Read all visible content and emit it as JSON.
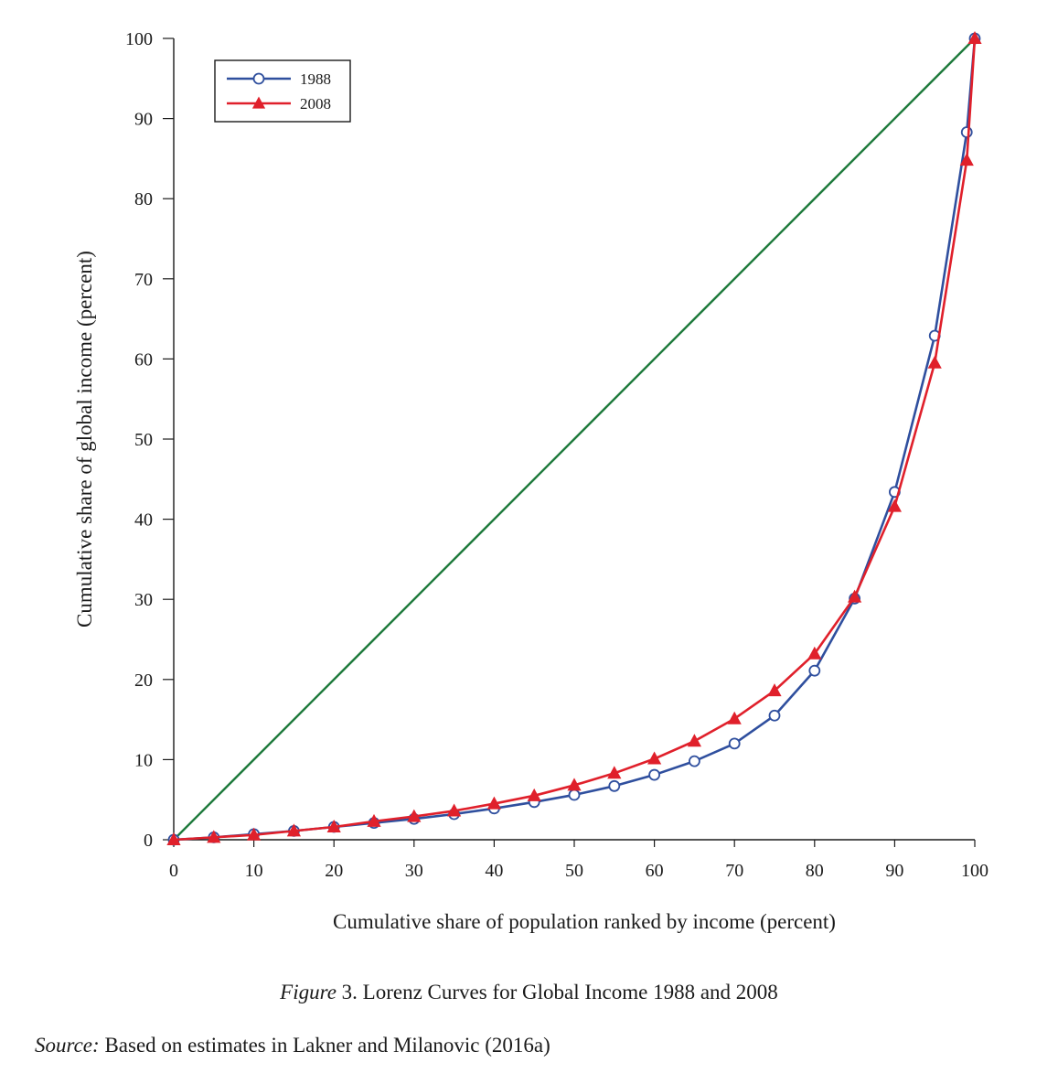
{
  "chart_data": {
    "type": "line",
    "title": "",
    "xlabel": "Cumulative share of population ranked by income (percent)",
    "ylabel": "Cumulative share of global income (percent)",
    "xlim": [
      0,
      100
    ],
    "ylim": [
      0,
      100
    ],
    "x_ticks": [
      0,
      10,
      20,
      30,
      40,
      50,
      60,
      70,
      80,
      90,
      100
    ],
    "y_ticks": [
      0,
      10,
      20,
      30,
      40,
      50,
      60,
      70,
      80,
      90,
      100
    ],
    "grid": false,
    "legend_position": "top-left",
    "equality_line": {
      "x": [
        0,
        100
      ],
      "y": [
        0,
        100
      ],
      "color": "#1e7a3c"
    },
    "series": [
      {
        "name": "1988",
        "marker": "open-circle",
        "color": "#2f4f9e",
        "x": [
          0,
          5,
          10,
          15,
          20,
          25,
          30,
          35,
          40,
          45,
          50,
          55,
          60,
          65,
          70,
          75,
          80,
          85,
          90,
          95,
          99,
          100
        ],
        "y": [
          0,
          0.3,
          0.7,
          1.1,
          1.6,
          2.1,
          2.6,
          3.2,
          3.9,
          4.7,
          5.6,
          6.7,
          8.1,
          9.8,
          12.0,
          15.5,
          21.1,
          30.1,
          43.4,
          62.9,
          88.3,
          100
        ]
      },
      {
        "name": "2008",
        "marker": "filled-triangle",
        "color": "#e0202b",
        "x": [
          0,
          5,
          10,
          15,
          20,
          25,
          30,
          35,
          40,
          45,
          50,
          55,
          60,
          65,
          70,
          75,
          80,
          85,
          90,
          95,
          99,
          100
        ],
        "y": [
          0,
          0.3,
          0.6,
          1.1,
          1.6,
          2.3,
          2.9,
          3.6,
          4.5,
          5.5,
          6.8,
          8.3,
          10.1,
          12.3,
          15.1,
          18.6,
          23.2,
          30.3,
          41.6,
          59.5,
          84.8,
          100
        ]
      }
    ]
  },
  "caption": {
    "figure_word": "Figure",
    "text": " 3. Lorenz Curves for Global Income 1988 and 2008"
  },
  "source": {
    "label": "Source:",
    "text": " Based on estimates in Lakner and Milanovic (2016a)"
  }
}
